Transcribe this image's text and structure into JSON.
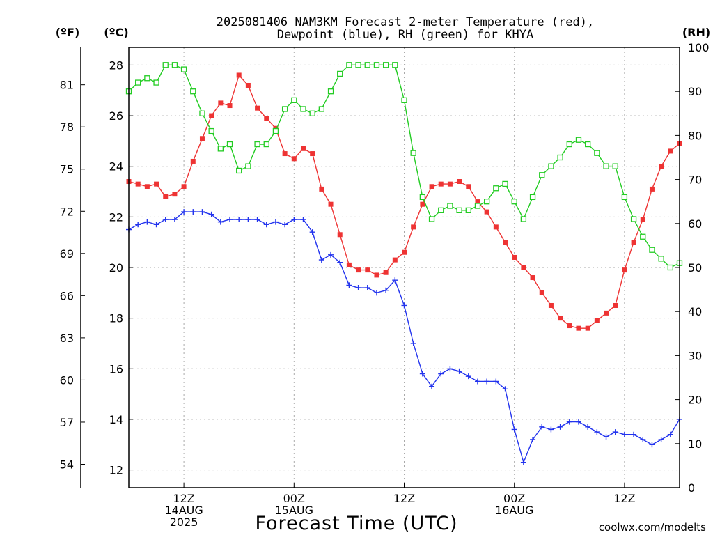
{
  "title_line1": "2025081406 NAM3KM Forecast 2-meter Temperature (red),",
  "title_line2": "Dewpoint (blue), RH (green) for KHYA",
  "unit_f": "(ºF)",
  "unit_c": "(ºC)",
  "unit_rh": "(RH)",
  "xlabel": "Forecast Time (UTC)",
  "credit": "coolwx.com/modelts",
  "colors": {
    "temperature": "#ee3333",
    "dewpoint": "#2233ee",
    "rh": "#22cc22",
    "grid": "#aaaaaa",
    "credit": "#dd2222"
  },
  "chart_data": {
    "type": "line",
    "x_unit": "hours since 2025-08-14 06Z",
    "xlim": [
      0,
      60
    ],
    "x_ticks": [
      {
        "x": 6,
        "lines": [
          "12Z",
          "14AUG",
          "2025"
        ]
      },
      {
        "x": 18,
        "lines": [
          "00Z",
          "15AUG"
        ]
      },
      {
        "x": 30,
        "lines": [
          "12Z"
        ]
      },
      {
        "x": 42,
        "lines": [
          "00Z",
          "16AUG"
        ]
      },
      {
        "x": 54,
        "lines": [
          "12Z"
        ]
      }
    ],
    "ylim_c": [
      11.3,
      28.7
    ],
    "yticks_c": [
      12,
      14,
      16,
      18,
      20,
      22,
      24,
      26,
      28
    ],
    "yticks_f": [
      54,
      57,
      60,
      63,
      66,
      69,
      72,
      75,
      78,
      81
    ],
    "ylim_rh": [
      0,
      100
    ],
    "yticks_rh": [
      0,
      10,
      20,
      30,
      40,
      50,
      60,
      70,
      80,
      90,
      100
    ],
    "grid": true,
    "series": [
      {
        "key": "temperature",
        "name": "Temperature",
        "marker": "filled-square",
        "axis": "c",
        "x": [
          0,
          1,
          2,
          3,
          4,
          5,
          6,
          7,
          8,
          9,
          10,
          11,
          12,
          13,
          14,
          15,
          16,
          17,
          18,
          19,
          20,
          21,
          22,
          23,
          24,
          25,
          26,
          27,
          28,
          29,
          30,
          31,
          32,
          33,
          34,
          35,
          36,
          37,
          38,
          39,
          40,
          41,
          42,
          43,
          44,
          45,
          46,
          47,
          48,
          49,
          50,
          51,
          52,
          53,
          54,
          55,
          56,
          57,
          58,
          59,
          60
        ],
        "values": [
          23.4,
          23.3,
          23.2,
          23.3,
          22.8,
          22.9,
          23.2,
          24.2,
          25.1,
          26.0,
          26.5,
          26.4,
          27.6,
          27.2,
          26.3,
          25.9,
          25.5,
          24.5,
          24.3,
          24.7,
          24.5,
          23.1,
          22.5,
          21.3,
          20.1,
          19.9,
          19.9,
          19.7,
          19.8,
          20.3,
          20.6,
          21.6,
          22.5,
          23.2,
          23.3,
          23.3,
          23.4,
          23.2,
          22.6,
          22.2,
          21.6,
          21.0,
          20.4,
          20.0,
          19.6,
          19.0,
          18.5,
          18.0,
          17.7,
          17.6,
          17.6,
          17.9,
          18.2,
          18.5,
          19.9,
          21.0,
          21.9,
          23.1,
          24.0,
          24.6,
          24.9
        ]
      },
      {
        "key": "dewpoint",
        "name": "Dewpoint",
        "marker": "plus",
        "axis": "c",
        "x": [
          0,
          1,
          2,
          3,
          4,
          5,
          6,
          7,
          8,
          9,
          10,
          11,
          12,
          13,
          14,
          15,
          16,
          17,
          18,
          19,
          20,
          21,
          22,
          23,
          24,
          25,
          26,
          27,
          28,
          29,
          30,
          31,
          32,
          33,
          34,
          35,
          36,
          37,
          38,
          39,
          40,
          41,
          42,
          43,
          44,
          45,
          46,
          47,
          48,
          49,
          50,
          51,
          52,
          53,
          54,
          55,
          56,
          57,
          58,
          59,
          60
        ],
        "values": [
          21.5,
          21.7,
          21.8,
          21.7,
          21.9,
          21.9,
          22.2,
          22.2,
          22.2,
          22.1,
          21.8,
          21.9,
          21.9,
          21.9,
          21.9,
          21.7,
          21.8,
          21.7,
          21.9,
          21.9,
          21.4,
          20.3,
          20.5,
          20.2,
          19.3,
          19.2,
          19.2,
          19.0,
          19.1,
          19.5,
          18.5,
          17.0,
          15.8,
          15.3,
          15.8,
          16.0,
          15.9,
          15.7,
          15.5,
          15.5,
          15.5,
          15.2,
          13.6,
          12.3,
          13.2,
          13.7,
          13.6,
          13.7,
          13.9,
          13.9,
          13.7,
          13.5,
          13.3,
          13.5,
          13.4,
          13.4,
          13.2,
          13.0,
          13.2,
          13.4,
          14.0
        ]
      },
      {
        "key": "rh",
        "name": "RH",
        "marker": "open-square",
        "axis": "rh",
        "x": [
          0,
          1,
          2,
          3,
          4,
          5,
          6,
          7,
          8,
          9,
          10,
          11,
          12,
          13,
          14,
          15,
          16,
          17,
          18,
          19,
          20,
          21,
          22,
          23,
          24,
          25,
          26,
          27,
          28,
          29,
          30,
          31,
          32,
          33,
          34,
          35,
          36,
          37,
          38,
          39,
          40,
          41,
          42,
          43,
          44,
          45,
          46,
          47,
          48,
          49,
          50,
          51,
          52,
          53,
          54,
          55,
          56,
          57,
          58,
          59,
          60
        ],
        "values": [
          90,
          92,
          93,
          92,
          96,
          96,
          95,
          90,
          85,
          81,
          77,
          78,
          72,
          73,
          78,
          78,
          81,
          86,
          88,
          86,
          85,
          86,
          90,
          94,
          96,
          96,
          96,
          96,
          96,
          96,
          88,
          76,
          66,
          61,
          63,
          64,
          63,
          63,
          64,
          65,
          68,
          69,
          65,
          61,
          66,
          71,
          73,
          75,
          78,
          79,
          78,
          76,
          73,
          73,
          66,
          61,
          57,
          54,
          52,
          50,
          51
        ]
      }
    ]
  }
}
